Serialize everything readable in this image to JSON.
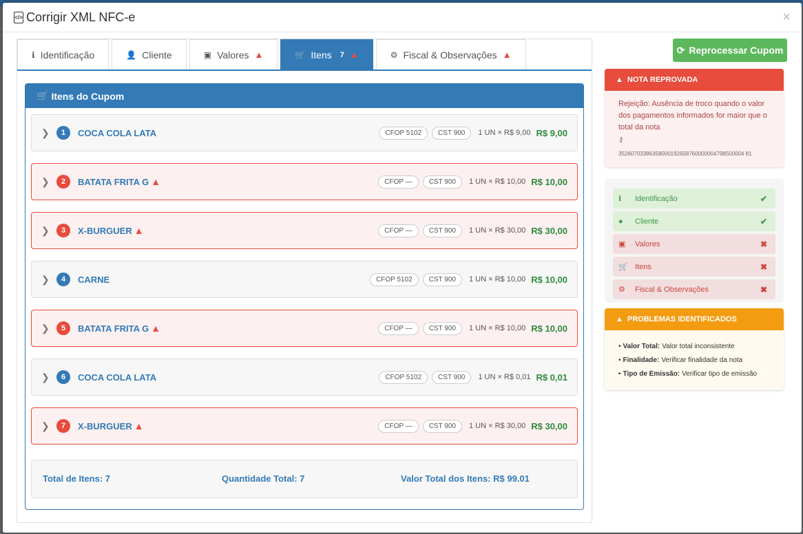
{
  "modal": {
    "title": "Corrigir XML NFC-e",
    "close": "×"
  },
  "tabs": [
    {
      "label": "Identificação",
      "warn": ""
    },
    {
      "label": "Cliente",
      "warn": ""
    },
    {
      "label": "Valores",
      "warn": "▲"
    },
    {
      "label": "Itens",
      "count": "7",
      "warn": "▲"
    },
    {
      "label": "Fiscal & Observações",
      "warn": "▲"
    }
  ],
  "panel": {
    "title": "Itens do Cupom"
  },
  "items": [
    {
      "num": "1",
      "name": "COCA COLA LATA",
      "cfop": "CFOP 5102",
      "cst": "CST 900",
      "qty": "1 UN × R$ 9,00",
      "price": "R$ 9,00",
      "warn": ""
    },
    {
      "num": "2",
      "name": "BATATA FRITA G",
      "cfop": "CFOP —",
      "cst": "CST 900",
      "qty": "1 UN × R$ 10,00",
      "price": "R$ 10,00",
      "warn": "▲"
    },
    {
      "num": "3",
      "name": "X-BURGUER",
      "cfop": "CFOP —",
      "cst": "CST 900",
      "qty": "1 UN × R$ 30,00",
      "price": "R$ 30,00",
      "warn": "▲"
    },
    {
      "num": "4",
      "name": "CARNE",
      "cfop": "CFOP 5102",
      "cst": "CST 900",
      "qty": "1 UN × R$ 10,00",
      "price": "R$ 10,00",
      "warn": ""
    },
    {
      "num": "5",
      "name": "BATATA FRITA G",
      "cfop": "CFOP —",
      "cst": "CST 900",
      "qty": "1 UN × R$ 10,00",
      "price": "R$ 10,00",
      "warn": "▲"
    },
    {
      "num": "6",
      "name": "COCA COLA LATA",
      "cfop": "CFOP 5102",
      "cst": "CST 900",
      "qty": "1 UN × R$ 0,01",
      "price": "R$ 0,01",
      "warn": ""
    },
    {
      "num": "7",
      "name": "X-BURGUER",
      "cfop": "CFOP —",
      "cst": "CST 900",
      "qty": "1 UN × R$ 30,00",
      "price": "R$ 30,00",
      "warn": "▲"
    }
  ],
  "totals": {
    "items": "Total de Itens: 7",
    "quantity": "Quantidade Total: 7",
    "value": "Valor Total dos Itens: R$ 99.01"
  },
  "actions": {
    "reprocess": "Reprocessar Cupom"
  },
  "alert": {
    "title": "NOTA REPROVADA",
    "text": "Rejeição: Ausência de troco quando o valor dos pagamentos informados for maior que o total da nota",
    "key": "35260703386358000192658760000004798500004 81"
  },
  "status": [
    {
      "label": "Identificação",
      "state": "ok",
      "mark": "✔"
    },
    {
      "label": "Cliente",
      "state": "ok",
      "mark": "✔"
    },
    {
      "label": "Valores",
      "state": "err",
      "mark": "✖"
    },
    {
      "label": "Itens",
      "state": "err",
      "mark": "✖"
    },
    {
      "label": "Fiscal & Observações",
      "state": "err",
      "mark": "✖"
    }
  ],
  "problems": {
    "title": "PROBLEMAS IDENTIFICADOS",
    "list": [
      {
        "label": "Valor Total:",
        "text": "Valor total inconsistente"
      },
      {
        "label": "Finalidade:",
        "text": "Verificar finalidade da nota"
      },
      {
        "label": "Tipo de Emissão:",
        "text": "Verificar tipo de emissão"
      }
    ]
  },
  "colors": {
    "primary": "#337ab7",
    "danger": "#e74c3c",
    "success": "#5cb85c",
    "warning": "#f39c12",
    "price": "#2e8b3e"
  }
}
